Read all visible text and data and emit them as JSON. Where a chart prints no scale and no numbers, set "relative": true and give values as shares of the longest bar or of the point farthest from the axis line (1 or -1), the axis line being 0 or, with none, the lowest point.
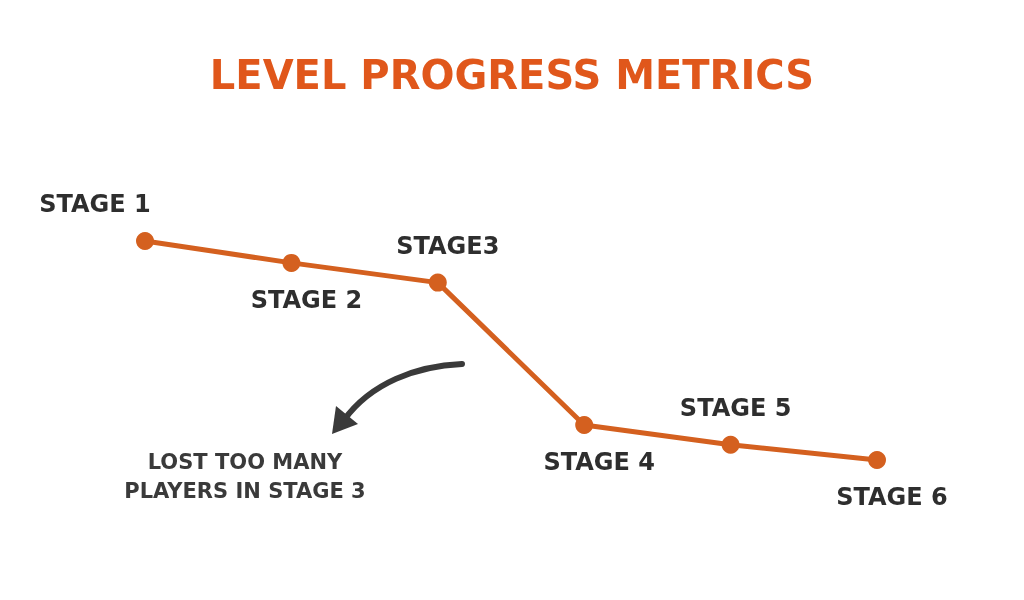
{
  "chart_data": {
    "type": "line",
    "title": "LEVEL PROGRESS METRICS",
    "relative": true,
    "categories": [
      "STAGE 1",
      "STAGE 2",
      "STAGE3",
      "STAGE 4",
      "STAGE 5",
      "STAGE 6"
    ],
    "values": [
      1,
      0.9,
      0.81,
      0.16,
      0.07,
      0
    ],
    "color": "#d4601f",
    "marker": "circle",
    "line_style": "solid",
    "tick_labels": false,
    "annotations": [
      "LOST TOO MANY PLAYERS IN STAGE 3"
    ]
  }
}
